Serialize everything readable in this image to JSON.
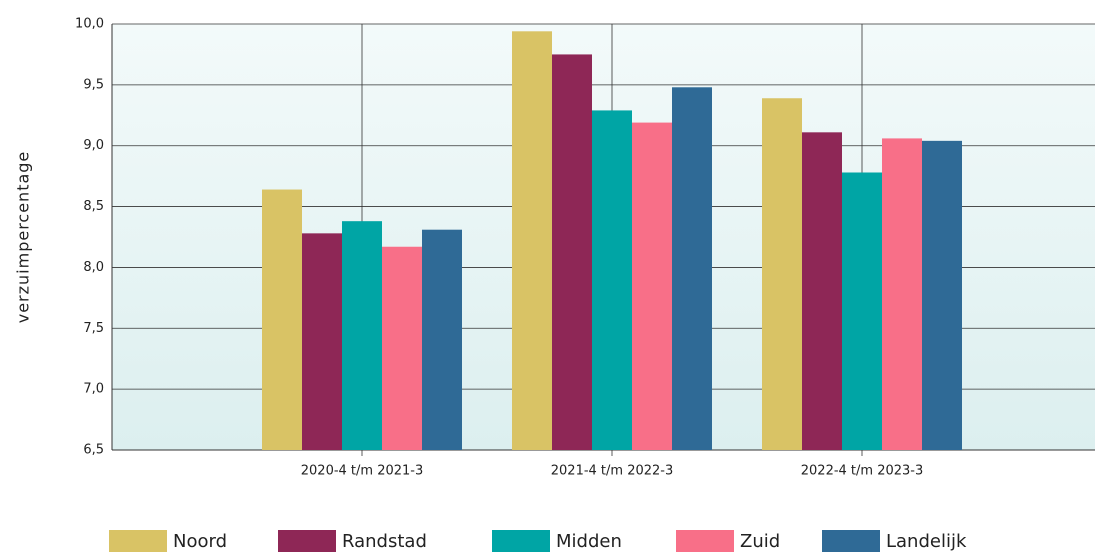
{
  "chart_data": {
    "type": "bar",
    "y_label": "verzuimpercentage",
    "categories": [
      "2020-4 t/m 2021-3",
      "2021-4 t/m 2022-3",
      "2022-4 t/m 2023-3"
    ],
    "series": [
      {
        "name": "Noord",
        "color": "#d9c365",
        "values": [
          8.64,
          9.94,
          9.39
        ]
      },
      {
        "name": "Randstad",
        "color": "#8e2756",
        "values": [
          8.28,
          9.75,
          9.11
        ]
      },
      {
        "name": "Midden",
        "color": "#00a5a5",
        "values": [
          8.38,
          9.29,
          8.78
        ]
      },
      {
        "name": "Zuid",
        "color": "#f86f88",
        "values": [
          8.17,
          9.19,
          9.06
        ]
      },
      {
        "name": "Landelijk",
        "color": "#2f6a96",
        "values": [
          8.31,
          9.48,
          9.04
        ]
      }
    ],
    "ylim": [
      6.5,
      10.0
    ],
    "yticks": [
      {
        "value": 6.5,
        "label": "6,5"
      },
      {
        "value": 7.0,
        "label": "7,0"
      },
      {
        "value": 7.5,
        "label": "7,5"
      },
      {
        "value": 8.0,
        "label": "8,0"
      },
      {
        "value": 8.5,
        "label": "8,5"
      },
      {
        "value": 9.0,
        "label": "9,0"
      },
      {
        "value": 9.5,
        "label": "9,5"
      },
      {
        "value": 10.0,
        "label": "10,0"
      }
    ],
    "grid": true
  }
}
